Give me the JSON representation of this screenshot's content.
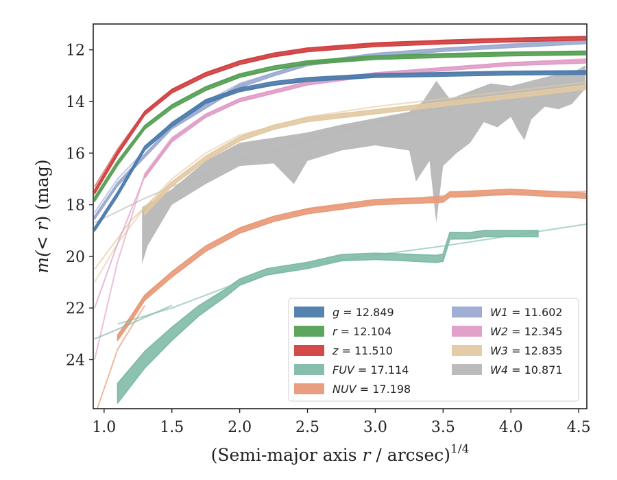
{
  "chart_data": {
    "type": "line",
    "xlabel": "(Semi-major axis r / arcsec)¹ᐟ⁴",
    "xlabel_parts": {
      "pre": "(Semi-major axis ",
      "var": "r",
      "post": " / arcsec)",
      "sup": "1/4"
    },
    "ylabel_parts": {
      "pre": "m(",
      "mid": "< ",
      "var": "r",
      "post": ") (mag)"
    },
    "xlim": [
      0.92,
      4.56
    ],
    "ylim": [
      25.9,
      11.0
    ],
    "y_inverted": true,
    "x_ticks": [
      1.0,
      1.5,
      2.0,
      2.5,
      3.0,
      3.5,
      4.0,
      4.5
    ],
    "x_tick_labels": [
      "1.0",
      "1.5",
      "2.0",
      "2.5",
      "3.0",
      "3.5",
      "4.0",
      "4.5"
    ],
    "y_ticks": [
      12,
      14,
      16,
      18,
      20,
      22,
      24
    ],
    "y_tick_labels": [
      "12",
      "14",
      "16",
      "18",
      "20",
      "22",
      "24"
    ],
    "grid": false,
    "legend_position": "lower-right",
    "legend_columns": 2,
    "series": [
      {
        "name": "g",
        "value_label": "= 12.849",
        "color": "#4c7bab",
        "band": 0.07,
        "measured": [
          [
            0.93,
            18.95
          ],
          [
            1.1,
            17.6
          ],
          [
            1.3,
            15.8
          ],
          [
            1.5,
            14.9
          ],
          [
            1.75,
            14.0
          ],
          [
            2.0,
            13.55
          ],
          [
            2.25,
            13.3
          ],
          [
            2.5,
            13.15
          ],
          [
            3.0,
            13.0
          ],
          [
            3.5,
            12.95
          ],
          [
            4.0,
            12.9
          ],
          [
            4.55,
            12.88
          ]
        ],
        "model": [
          [
            0.93,
            18.9
          ],
          [
            1.1,
            17.5
          ],
          [
            1.3,
            15.75
          ],
          [
            1.5,
            14.85
          ],
          [
            1.75,
            14.0
          ],
          [
            2.0,
            13.55
          ],
          [
            2.5,
            13.15
          ],
          [
            3.0,
            13.0
          ],
          [
            3.5,
            12.93
          ],
          [
            4.0,
            12.89
          ],
          [
            4.55,
            12.85
          ]
        ]
      },
      {
        "name": "r",
        "value_label": "= 12.104",
        "color": "#55a055",
        "band": 0.07,
        "measured": [
          [
            0.93,
            17.8
          ],
          [
            1.1,
            16.4
          ],
          [
            1.3,
            15.0
          ],
          [
            1.5,
            14.2
          ],
          [
            1.75,
            13.5
          ],
          [
            2.0,
            13.0
          ],
          [
            2.25,
            12.7
          ],
          [
            2.5,
            12.5
          ],
          [
            3.0,
            12.3
          ],
          [
            3.5,
            12.22
          ],
          [
            4.0,
            12.16
          ],
          [
            4.55,
            12.12
          ]
        ],
        "model": [
          [
            0.93,
            17.7
          ],
          [
            1.1,
            16.3
          ],
          [
            1.3,
            14.95
          ],
          [
            1.5,
            14.15
          ],
          [
            1.75,
            13.45
          ],
          [
            2.0,
            13.0
          ],
          [
            2.5,
            12.5
          ],
          [
            3.0,
            12.3
          ],
          [
            3.5,
            12.2
          ],
          [
            4.0,
            12.14
          ],
          [
            4.55,
            12.1
          ]
        ]
      },
      {
        "name": "z",
        "value_label": "= 11.510",
        "color": "#d04040",
        "band": 0.07,
        "measured": [
          [
            0.93,
            17.5
          ],
          [
            1.1,
            16.0
          ],
          [
            1.3,
            14.45
          ],
          [
            1.5,
            13.6
          ],
          [
            1.75,
            12.95
          ],
          [
            2.0,
            12.5
          ],
          [
            2.25,
            12.2
          ],
          [
            2.5,
            12.0
          ],
          [
            3.0,
            11.8
          ],
          [
            3.5,
            11.7
          ],
          [
            4.0,
            11.62
          ],
          [
            4.55,
            11.55
          ]
        ],
        "model": [
          [
            0.93,
            17.3
          ],
          [
            1.1,
            15.85
          ],
          [
            1.3,
            14.4
          ],
          [
            1.5,
            13.55
          ],
          [
            1.75,
            12.9
          ],
          [
            2.0,
            12.45
          ],
          [
            2.5,
            12.0
          ],
          [
            3.0,
            11.78
          ],
          [
            3.5,
            11.67
          ],
          [
            4.0,
            11.58
          ],
          [
            4.55,
            11.51
          ]
        ]
      },
      {
        "name": "FUV",
        "value_label": "= 17.114",
        "color": "#7fbba6",
        "band_list": [
          [
            1.1,
            0.38
          ],
          [
            1.3,
            0.32
          ],
          [
            1.6,
            0.22
          ],
          [
            2.0,
            0.12
          ],
          [
            3.0,
            0.12
          ],
          [
            3.5,
            0.14
          ],
          [
            3.6,
            0.12
          ],
          [
            4.2,
            0.12
          ]
        ],
        "measured": [
          [
            1.1,
            25.3
          ],
          [
            1.3,
            24.0
          ],
          [
            1.5,
            23.0
          ],
          [
            1.7,
            22.1
          ],
          [
            1.9,
            21.4
          ],
          [
            2.0,
            21.0
          ],
          [
            2.2,
            20.6
          ],
          [
            2.5,
            20.35
          ],
          [
            2.75,
            20.05
          ],
          [
            3.0,
            20.0
          ],
          [
            3.25,
            20.05
          ],
          [
            3.45,
            20.1
          ],
          [
            3.5,
            20.05
          ],
          [
            3.55,
            19.2
          ],
          [
            3.7,
            19.2
          ],
          [
            3.8,
            19.12
          ],
          [
            4.0,
            19.12
          ],
          [
            4.2,
            19.12
          ]
        ],
        "model": [
          [
            1.1,
            22.62
          ],
          [
            1.5,
            22.0
          ],
          [
            2.0,
            21.0
          ],
          [
            2.5,
            20.3
          ],
          [
            3.0,
            19.95
          ],
          [
            3.5,
            19.6
          ],
          [
            4.0,
            19.2
          ],
          [
            4.56,
            18.75
          ]
        ],
        "extra": [
          [
            0.93,
            23.2
          ],
          [
            1.2,
            22.6
          ],
          [
            1.5,
            21.9
          ]
        ]
      },
      {
        "name": "NUV",
        "value_label": "= 17.198",
        "color": "#e89a78",
        "band": 0.1,
        "measured": [
          [
            1.1,
            23.15
          ],
          [
            1.2,
            22.4
          ],
          [
            1.3,
            21.6
          ],
          [
            1.5,
            20.7
          ],
          [
            1.75,
            19.7
          ],
          [
            2.0,
            19.0
          ],
          [
            2.25,
            18.55
          ],
          [
            2.5,
            18.25
          ],
          [
            3.0,
            17.9
          ],
          [
            3.5,
            17.8
          ],
          [
            3.55,
            17.6
          ],
          [
            3.6,
            17.6
          ],
          [
            4.0,
            17.5
          ],
          [
            4.55,
            17.65
          ]
        ],
        "model": [
          [
            1.1,
            23.1
          ],
          [
            1.3,
            21.6
          ],
          [
            1.5,
            20.6
          ],
          [
            1.75,
            19.6
          ],
          [
            2.0,
            18.95
          ],
          [
            2.5,
            18.2
          ],
          [
            3.0,
            17.9
          ],
          [
            3.5,
            17.65
          ],
          [
            4.0,
            17.55
          ],
          [
            4.56,
            17.48
          ]
        ],
        "extra": [
          [
            0.95,
            25.9
          ],
          [
            1.1,
            23.6
          ],
          [
            1.3,
            21.9
          ]
        ]
      },
      {
        "name": "W1",
        "value_label": "= 11.602",
        "color": "#9aaad0",
        "band": 0.06,
        "measured": [
          [
            0.93,
            18.5
          ],
          [
            1.1,
            17.2
          ],
          [
            1.3,
            16.1
          ],
          [
            1.5,
            15.0
          ],
          [
            1.75,
            14.2
          ],
          [
            2.0,
            13.4
          ],
          [
            2.25,
            12.95
          ],
          [
            2.5,
            12.55
          ],
          [
            3.0,
            12.2
          ],
          [
            3.5,
            12.0
          ],
          [
            4.0,
            11.85
          ],
          [
            4.55,
            11.7
          ]
        ],
        "model": [
          [
            0.93,
            18.3
          ],
          [
            1.1,
            17.0
          ],
          [
            1.3,
            15.9
          ],
          [
            1.5,
            14.8
          ],
          [
            1.75,
            14.0
          ],
          [
            2.0,
            13.3
          ],
          [
            2.5,
            12.5
          ],
          [
            3.0,
            12.15
          ],
          [
            3.5,
            11.95
          ],
          [
            4.0,
            11.78
          ],
          [
            4.56,
            11.6
          ]
        ]
      },
      {
        "name": "W2",
        "value_label": "= 12.345",
        "color": "#e09cc6",
        "band": 0.06,
        "measured": [
          [
            1.3,
            16.9
          ],
          [
            1.5,
            15.5
          ],
          [
            1.75,
            14.55
          ],
          [
            2.0,
            13.95
          ],
          [
            2.5,
            13.3
          ],
          [
            3.0,
            12.95
          ],
          [
            3.5,
            12.75
          ],
          [
            4.0,
            12.55
          ],
          [
            4.55,
            12.45
          ]
        ],
        "model": [
          [
            0.93,
            24.0
          ],
          [
            1.1,
            20.2
          ],
          [
            1.3,
            16.8
          ],
          [
            1.5,
            15.4
          ],
          [
            1.75,
            14.5
          ],
          [
            2.0,
            13.9
          ],
          [
            2.5,
            13.25
          ],
          [
            3.0,
            12.9
          ],
          [
            3.5,
            12.7
          ],
          [
            4.0,
            12.5
          ],
          [
            4.56,
            12.35
          ]
        ],
        "extra": [
          [
            0.93,
            22.0
          ],
          [
            1.1,
            19.5
          ],
          [
            1.3,
            16.9
          ]
        ]
      },
      {
        "name": "W3",
        "value_label": "= 12.835",
        "color": "#e2c9a2",
        "band": 0.08,
        "measured": [
          [
            1.3,
            18.3
          ],
          [
            1.5,
            17.2
          ],
          [
            1.75,
            16.2
          ],
          [
            2.0,
            15.45
          ],
          [
            2.25,
            15.0
          ],
          [
            2.5,
            14.7
          ],
          [
            3.0,
            14.4
          ],
          [
            3.5,
            14.1
          ],
          [
            4.0,
            13.8
          ],
          [
            4.55,
            13.45
          ]
        ],
        "model": [
          [
            0.93,
            21.0
          ],
          [
            1.1,
            19.5
          ],
          [
            1.3,
            18.1
          ],
          [
            1.5,
            17.0
          ],
          [
            1.75,
            16.0
          ],
          [
            2.0,
            15.3
          ],
          [
            2.5,
            14.6
          ],
          [
            3.0,
            14.2
          ],
          [
            3.5,
            13.9
          ],
          [
            4.0,
            13.6
          ],
          [
            4.56,
            13.25
          ]
        ],
        "extra": [
          [
            0.93,
            20.5
          ],
          [
            1.2,
            18.6
          ],
          [
            1.5,
            17.1
          ]
        ]
      },
      {
        "name": "W4",
        "value_label": "= 10.871",
        "color": "#b7b7b7",
        "band": 0,
        "band_upper": [
          [
            1.28,
            18.1
          ],
          [
            1.5,
            17.4
          ],
          [
            1.75,
            16.3
          ],
          [
            2.0,
            15.6
          ],
          [
            2.25,
            15.4
          ],
          [
            2.5,
            15.2
          ],
          [
            2.75,
            14.9
          ],
          [
            3.0,
            14.65
          ],
          [
            3.25,
            14.4
          ],
          [
            3.35,
            14.0
          ],
          [
            3.45,
            13.2
          ],
          [
            3.55,
            13.9
          ],
          [
            3.7,
            13.6
          ],
          [
            3.85,
            13.3
          ],
          [
            4.0,
            13.4
          ],
          [
            4.15,
            13.2
          ],
          [
            4.3,
            13.0
          ],
          [
            4.45,
            12.9
          ],
          [
            4.5,
            12.75
          ],
          [
            4.55,
            12.6
          ]
        ],
        "band_lower": [
          [
            1.28,
            20.3
          ],
          [
            1.32,
            19.6
          ],
          [
            1.5,
            18.0
          ],
          [
            1.75,
            17.2
          ],
          [
            2.0,
            16.5
          ],
          [
            2.25,
            16.4
          ],
          [
            2.4,
            17.2
          ],
          [
            2.5,
            16.3
          ],
          [
            2.75,
            15.9
          ],
          [
            3.0,
            15.7
          ],
          [
            3.25,
            15.9
          ],
          [
            3.3,
            17.1
          ],
          [
            3.4,
            16.3
          ],
          [
            3.45,
            18.7
          ],
          [
            3.5,
            16.5
          ],
          [
            3.6,
            16.0
          ],
          [
            3.7,
            15.6
          ],
          [
            3.8,
            14.8
          ],
          [
            3.9,
            15.0
          ],
          [
            4.0,
            14.6
          ],
          [
            4.05,
            15.1
          ],
          [
            4.1,
            15.5
          ],
          [
            4.15,
            14.7
          ],
          [
            4.25,
            14.2
          ],
          [
            4.35,
            14.3
          ],
          [
            4.45,
            14.1
          ],
          [
            4.55,
            13.5
          ]
        ],
        "model": [
          [
            0.93,
            18.7
          ],
          [
            1.28,
            17.8
          ],
          [
            1.5,
            17.3
          ],
          [
            2.0,
            16.3
          ],
          [
            2.5,
            15.5
          ],
          [
            3.0,
            14.8
          ],
          [
            3.5,
            14.2
          ],
          [
            4.0,
            13.8
          ],
          [
            4.56,
            13.4
          ]
        ]
      }
    ]
  }
}
